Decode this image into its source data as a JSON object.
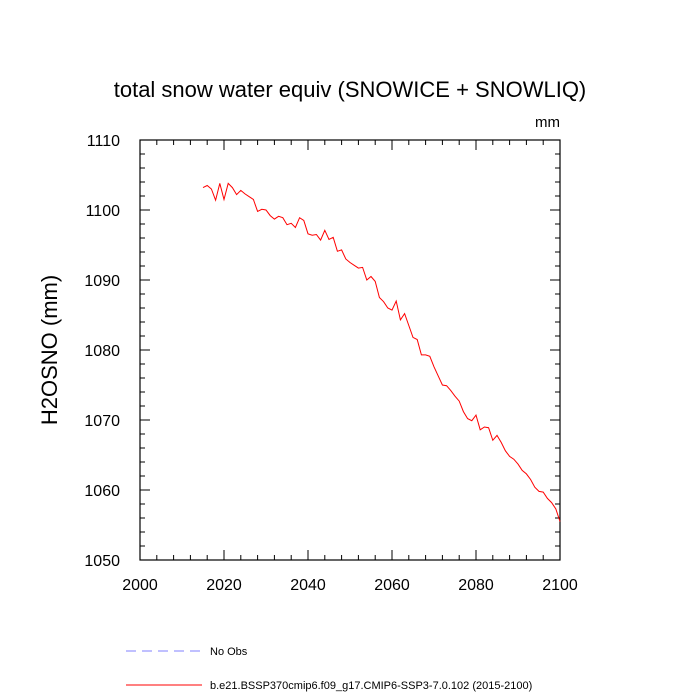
{
  "chart_data": {
    "type": "line",
    "title": "total snow water equiv (SNOWICE + SNOWLIQ)",
    "units": "mm",
    "ylabel": "H2OSNO  (mm)",
    "xlabel": "",
    "xlim": [
      2000,
      2100
    ],
    "ylim": [
      1050,
      1110
    ],
    "xticks": [
      2000,
      2020,
      2040,
      2060,
      2080,
      2100
    ],
    "yticks": [
      1050,
      1060,
      1070,
      1080,
      1090,
      1100,
      1110
    ],
    "legend_position": "bottom",
    "grid": false,
    "series": [
      {
        "name": "No Obs",
        "color": "#8080ff",
        "dash": "dashed",
        "x": [],
        "y": []
      },
      {
        "name": "b.e21.BSSP370cmip6.f09_g17.CMIP6-SSP3-7.0.102 (2015-2100)",
        "color": "#ff0000",
        "dash": "solid",
        "x": [
          2015,
          2016,
          2017,
          2018,
          2019,
          2020,
          2021,
          2022,
          2023,
          2024,
          2025,
          2026,
          2027,
          2028,
          2029,
          2030,
          2031,
          2032,
          2033,
          2034,
          2035,
          2036,
          2037,
          2038,
          2039,
          2040,
          2041,
          2042,
          2043,
          2044,
          2045,
          2046,
          2047,
          2048,
          2049,
          2050,
          2051,
          2052,
          2053,
          2054,
          2055,
          2056,
          2057,
          2058,
          2059,
          2060,
          2061,
          2062,
          2063,
          2064,
          2065,
          2066,
          2067,
          2068,
          2069,
          2070,
          2071,
          2072,
          2073,
          2074,
          2075,
          2076,
          2077,
          2078,
          2079,
          2080,
          2081,
          2082,
          2083,
          2084,
          2085,
          2086,
          2087,
          2088,
          2089,
          2090,
          2091,
          2092,
          2093,
          2094,
          2095,
          2096,
          2097,
          2098,
          2099,
          2100
        ],
        "y": [
          1103.2,
          1103.5,
          1103.0,
          1101.4,
          1103.8,
          1101.5,
          1103.8,
          1103.2,
          1102.2,
          1102.8,
          1102.3,
          1101.9,
          1101.5,
          1099.8,
          1100.1,
          1100.0,
          1099.2,
          1098.7,
          1099.1,
          1098.9,
          1097.9,
          1098.1,
          1097.5,
          1098.9,
          1098.5,
          1096.6,
          1096.4,
          1096.5,
          1095.7,
          1097.1,
          1095.8,
          1096.1,
          1094.1,
          1094.3,
          1093.0,
          1092.5,
          1092.1,
          1091.7,
          1091.8,
          1090.0,
          1090.5,
          1089.8,
          1087.5,
          1086.9,
          1086.0,
          1085.7,
          1087.0,
          1084.3,
          1085.2,
          1083.5,
          1081.8,
          1081.5,
          1079.3,
          1079.3,
          1079.1,
          1077.6,
          1076.3,
          1075.0,
          1074.9,
          1074.2,
          1073.4,
          1072.7,
          1071.2,
          1070.2,
          1069.9,
          1070.7,
          1068.6,
          1069.0,
          1068.9,
          1067.1,
          1067.8,
          1066.8,
          1065.6,
          1064.8,
          1064.4,
          1063.7,
          1062.8,
          1062.3,
          1061.5,
          1060.4,
          1059.8,
          1059.7,
          1058.8,
          1058.2,
          1057.3,
          1055.5
        ]
      }
    ]
  }
}
